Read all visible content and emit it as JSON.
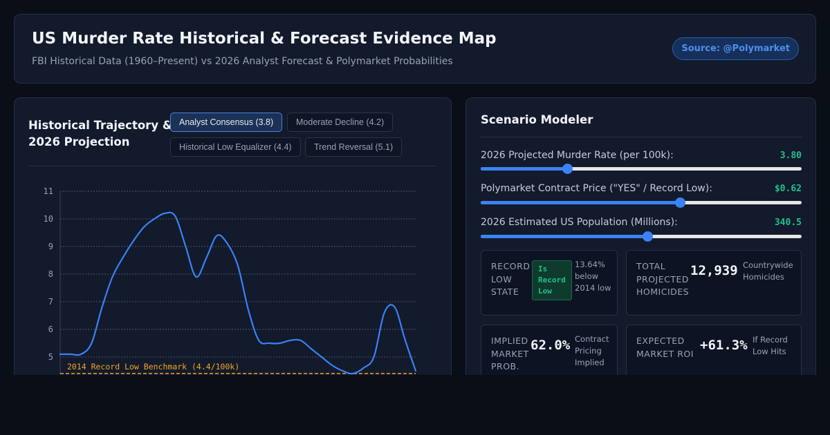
{
  "header": {
    "title": "US Murder Rate Historical & Forecast Evidence Map",
    "subtitle": "FBI Historical Data (1960–Present) vs 2026 Analyst Forecast & Polymarket Probabilities",
    "source": "Source: @Polymarket"
  },
  "chart_panel": {
    "title": "Historical Trajectory & 2026 Projection",
    "scenarios": [
      {
        "label": "Analyst Consensus (3.8)",
        "active": true
      },
      {
        "label": "Moderate Decline (4.2)",
        "active": false
      },
      {
        "label": "Historical Low Equalizer (4.4)",
        "active": false
      },
      {
        "label": "Trend Reversal (5.1)",
        "active": false
      }
    ]
  },
  "chart_data": {
    "type": "line",
    "yticks": [
      11,
      10,
      9,
      8,
      7,
      6,
      5
    ],
    "ylim": [
      4.4,
      11
    ],
    "grid": true,
    "series": [
      {
        "values": [
          5.1,
          5.1,
          5.1,
          5.5,
          6.8,
          7.9,
          8.6,
          9.2,
          9.7,
          10.0,
          10.2,
          10.1,
          9.0,
          7.9,
          8.6,
          9.4,
          9.1,
          8.3,
          6.7,
          5.6,
          5.5,
          5.5,
          5.6,
          5.6,
          5.3,
          5.0,
          4.7,
          4.5,
          4.4,
          4.6,
          5.0,
          6.6,
          6.8,
          5.6,
          4.5
        ],
        "color": "#3b82f6"
      }
    ],
    "benchmark": {
      "label": "2014 Record Low Benchmark (4.4/100k)",
      "value": 4.4,
      "color": "#f5a524"
    }
  },
  "modeler": {
    "title": "Scenario Modeler",
    "sliders": [
      {
        "label": "2026 Projected Murder Rate (per 100k):",
        "value": "3.80",
        "fraction": 0.27
      },
      {
        "label": "Polymarket Contract Price (\"YES\" / Record Low):",
        "value": "$0.62",
        "fraction": 0.62
      },
      {
        "label": "2026 Estimated US Population (Millions):",
        "value": "340.5",
        "fraction": 0.52
      }
    ],
    "cards": {
      "record_low": {
        "label": "RECORD LOW STATE",
        "badge": "Is Record Low",
        "note": "13.64% below 2014 low"
      },
      "homicides": {
        "label": "TOTAL PROJECTED HOMICIDES",
        "value": "12,939",
        "note": "Countrywide Homicides"
      },
      "implied": {
        "label": "IMPLIED MARKET PROB.",
        "value": "62.0%",
        "note": "Contract Pricing Implied"
      },
      "roi": {
        "label": "EXPECTED MARKET ROI",
        "value": "+61.3%",
        "note": "If Record Low Hits"
      }
    }
  }
}
